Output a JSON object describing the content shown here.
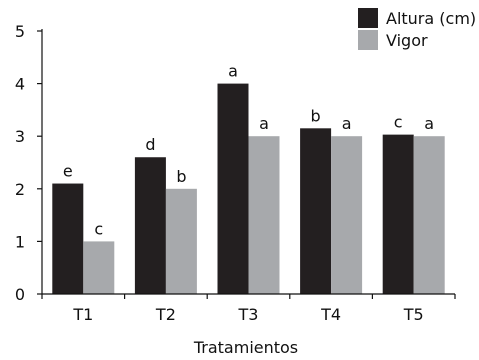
{
  "chart_data": {
    "type": "bar",
    "title": "",
    "xlabel": "Tratamientos",
    "ylabel": "",
    "categories": [
      "T1",
      "T2",
      "T3",
      "T4",
      "T5"
    ],
    "y_ticks": [
      "0",
      "1",
      "2",
      "3",
      "4",
      "5"
    ],
    "ylim": [
      0,
      5
    ],
    "grid": false,
    "legend_position": "top-right",
    "series": [
      {
        "name": "Altura (cm)",
        "color": "#231f20",
        "values": [
          2.1,
          2.6,
          4.0,
          3.15,
          3.03
        ],
        "labels": [
          "e",
          "d",
          "a",
          "b",
          "c"
        ]
      },
      {
        "name": "Vigor",
        "color": "#a7a9ac",
        "values": [
          1.0,
          2.0,
          3.0,
          3.0,
          3.0
        ],
        "labels": [
          "c",
          "b",
          "a",
          "a",
          "a"
        ]
      }
    ]
  }
}
